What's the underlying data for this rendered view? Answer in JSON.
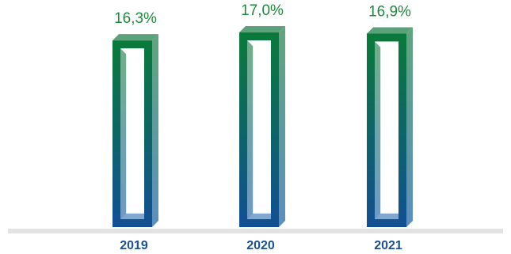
{
  "chart_data": {
    "type": "bar",
    "categories": [
      "2019",
      "2020",
      "2021"
    ],
    "values": [
      16.3,
      17.0,
      16.9
    ],
    "value_labels": [
      "16,3%",
      "17,0%",
      "16,9%"
    ],
    "title": "",
    "xlabel": "",
    "ylabel": "",
    "grid": false,
    "legend": "none",
    "colors": {
      "bar_top": "#0a7a3a",
      "bar_bottom": "#124f93",
      "bar_side_light": "#6aa894",
      "value_text": "#1e8a3c",
      "category_text": "#1a4f95",
      "axis_line": "#e3e3e3"
    }
  }
}
